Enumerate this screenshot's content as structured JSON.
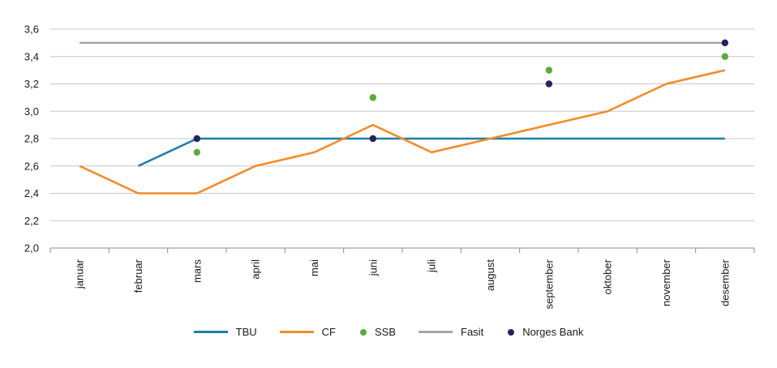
{
  "chart_data": {
    "type": "line",
    "categories": [
      "januar",
      "februar",
      "mars",
      "april",
      "mai",
      "juni",
      "juli",
      "august",
      "september",
      "oktober",
      "november",
      "desember"
    ],
    "ylim": [
      2.0,
      3.6
    ],
    "yticks": [
      "2,0",
      "2,2",
      "2,4",
      "2,6",
      "2,8",
      "3,0",
      "3,2",
      "3,4",
      "3,6"
    ],
    "grid": "horizontal",
    "legend_position": "bottom",
    "series": [
      {
        "name": "TBU",
        "kind": "line",
        "color": "#1a7fa8",
        "values": [
          null,
          2.6,
          2.8,
          2.8,
          2.8,
          2.8,
          2.8,
          2.8,
          2.8,
          2.8,
          2.8,
          2.8
        ]
      },
      {
        "name": "CF",
        "kind": "line",
        "color": "#f28c28",
        "values": [
          2.6,
          2.4,
          2.4,
          2.6,
          2.7,
          2.9,
          2.7,
          2.8,
          2.9,
          3.0,
          3.2,
          3.3
        ]
      },
      {
        "name": "SSB",
        "kind": "dot",
        "color": "#5aab3c",
        "values": [
          null,
          null,
          2.7,
          null,
          null,
          3.1,
          null,
          null,
          3.3,
          null,
          null,
          3.4
        ]
      },
      {
        "name": "Fasit",
        "kind": "line",
        "color": "#a6a6a6",
        "values": [
          3.5,
          3.5,
          3.5,
          3.5,
          3.5,
          3.5,
          3.5,
          3.5,
          3.5,
          3.5,
          3.5,
          3.5
        ]
      },
      {
        "name": "Norges Bank",
        "kind": "dot",
        "color": "#24245e",
        "values": [
          null,
          null,
          2.8,
          null,
          null,
          2.8,
          null,
          null,
          3.2,
          null,
          null,
          3.5
        ]
      }
    ],
    "draw_order": [
      "Fasit",
      "TBU",
      "CF",
      "SSB",
      "Norges Bank"
    ]
  }
}
